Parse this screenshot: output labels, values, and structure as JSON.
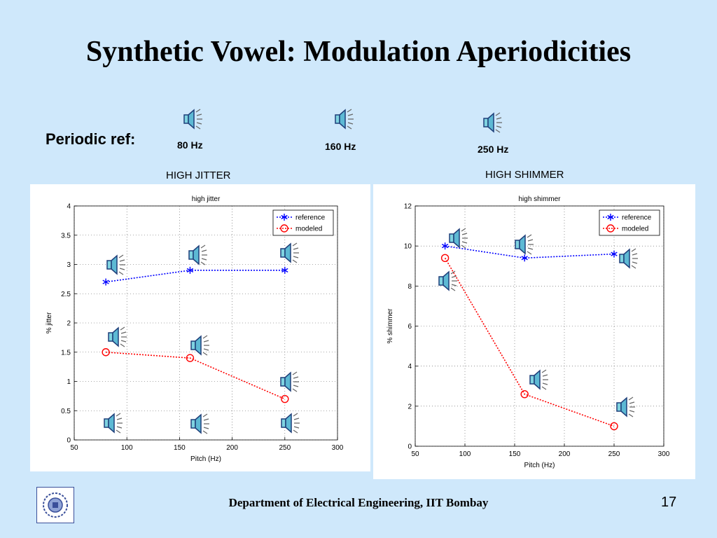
{
  "slide": {
    "title": "Synthetic Vowel: Modulation Aperiodicities",
    "periodic_ref_label": "Periodic ref:",
    "ref_labels": [
      "80 Hz",
      "160 Hz",
      "250 Hz"
    ],
    "panel_titles": [
      "HIGH JITTER",
      "HIGH SHIMMER"
    ],
    "footer": "Department of Electrical Engineering, IIT Bombay",
    "page_number": "17"
  },
  "icons": {
    "audio": "speaker-icon",
    "logo": "iit-bombay-logo-icon"
  },
  "colors": {
    "background": "#cfe8fb",
    "reference": "#0000ff",
    "modeled": "#ff0000"
  },
  "chart_data": [
    {
      "type": "line",
      "title": "high jitter",
      "xlabel": "Pitch (Hz)",
      "ylabel": "% jitter",
      "xlim": [
        50,
        300
      ],
      "ylim": [
        0,
        4
      ],
      "xticks": [
        50,
        100,
        150,
        200,
        250,
        300
      ],
      "yticks": [
        0,
        0.5,
        1,
        1.5,
        2,
        2.5,
        3,
        3.5,
        4
      ],
      "grid": true,
      "legend": "top-right",
      "series": [
        {
          "name": "reference",
          "marker": "star",
          "color": "#0000ff",
          "x": [
            80,
            160,
            250
          ],
          "y": [
            2.7,
            2.9,
            2.9
          ]
        },
        {
          "name": "modeled",
          "marker": "circle",
          "color": "#ff0000",
          "x": [
            80,
            160,
            250
          ],
          "y": [
            1.5,
            1.4,
            0.7
          ]
        }
      ]
    },
    {
      "type": "line",
      "title": "high shimmer",
      "xlabel": "Pitch (Hz)",
      "ylabel": "% shimmer",
      "xlim": [
        50,
        300
      ],
      "ylim": [
        0,
        12
      ],
      "xticks": [
        50,
        100,
        150,
        200,
        250,
        300
      ],
      "yticks": [
        0,
        2,
        4,
        6,
        8,
        10,
        12
      ],
      "grid": true,
      "legend": "top-right",
      "series": [
        {
          "name": "reference",
          "marker": "star",
          "color": "#0000ff",
          "x": [
            80,
            160,
            250
          ],
          "y": [
            10,
            9.4,
            9.6
          ]
        },
        {
          "name": "modeled",
          "marker": "circle",
          "color": "#ff0000",
          "x": [
            80,
            160,
            250
          ],
          "y": [
            9.4,
            2.6,
            1.0
          ]
        }
      ]
    }
  ]
}
